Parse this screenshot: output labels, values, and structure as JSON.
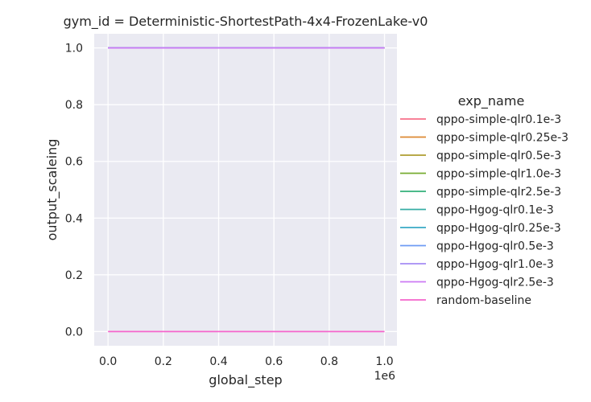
{
  "chart_data": {
    "type": "line",
    "title": "gym_id = Deterministic-ShortestPath-4x4-FrozenLake-v0",
    "xlabel": "global_step",
    "ylabel": "output_scaleing",
    "x_offset_label": "1e6",
    "xlim": [
      -0.05,
      1.045
    ],
    "ylim": [
      -0.05,
      1.05
    ],
    "x_ticks": [
      0.0,
      0.2,
      0.4,
      0.6,
      0.8,
      1.0
    ],
    "x_tick_labels": [
      "0.0",
      "0.2",
      "0.4",
      "0.6",
      "0.8",
      "1.0"
    ],
    "y_ticks": [
      0.0,
      0.2,
      0.4,
      0.6,
      0.8,
      1.0
    ],
    "y_tick_labels": [
      "0.0",
      "0.2",
      "0.4",
      "0.6",
      "0.8",
      "1.0"
    ],
    "grid": true,
    "legend_title": "exp_name",
    "legend_position": "right",
    "series": [
      {
        "name": "qppo-simple-qlr0.1e-3",
        "color": "#f77189",
        "x": [
          0,
          1.0
        ],
        "y": [
          1.0,
          1.0
        ]
      },
      {
        "name": "qppo-simple-qlr0.25e-3",
        "color": "#dc8932",
        "x": [
          0,
          1.0
        ],
        "y": [
          1.0,
          1.0
        ]
      },
      {
        "name": "qppo-simple-qlr0.5e-3",
        "color": "#ae9d31",
        "x": [
          0,
          1.0
        ],
        "y": [
          1.0,
          1.0
        ]
      },
      {
        "name": "qppo-simple-qlr1.0e-3",
        "color": "#77ab31",
        "x": [
          0,
          1.0
        ],
        "y": [
          1.0,
          1.0
        ]
      },
      {
        "name": "qppo-simple-qlr2.5e-3",
        "color": "#33b07a",
        "x": [
          0,
          1.0
        ],
        "y": [
          1.0,
          1.0
        ]
      },
      {
        "name": "qppo-Hgog-qlr0.1e-3",
        "color": "#36ada4",
        "x": [
          0,
          1.0
        ],
        "y": [
          1.0,
          1.0
        ]
      },
      {
        "name": "qppo-Hgog-qlr0.25e-3",
        "color": "#38a9c5",
        "x": [
          0,
          1.0
        ],
        "y": [
          1.0,
          1.0
        ]
      },
      {
        "name": "qppo-Hgog-qlr0.5e-3",
        "color": "#6e9bf4",
        "x": [
          0,
          1.0
        ],
        "y": [
          1.0,
          1.0
        ]
      },
      {
        "name": "qppo-Hgog-qlr1.0e-3",
        "color": "#a48cf4",
        "x": [
          0,
          1.0
        ],
        "y": [
          1.0,
          1.0
        ]
      },
      {
        "name": "qppo-Hgog-qlr2.5e-3",
        "color": "#cc7af4",
        "x": [
          0,
          1.0
        ],
        "y": [
          1.0,
          1.0
        ]
      },
      {
        "name": "random-baseline",
        "color": "#f565cc",
        "x": [
          0,
          1.0
        ],
        "y": [
          0.0,
          0.0
        ]
      }
    ]
  }
}
